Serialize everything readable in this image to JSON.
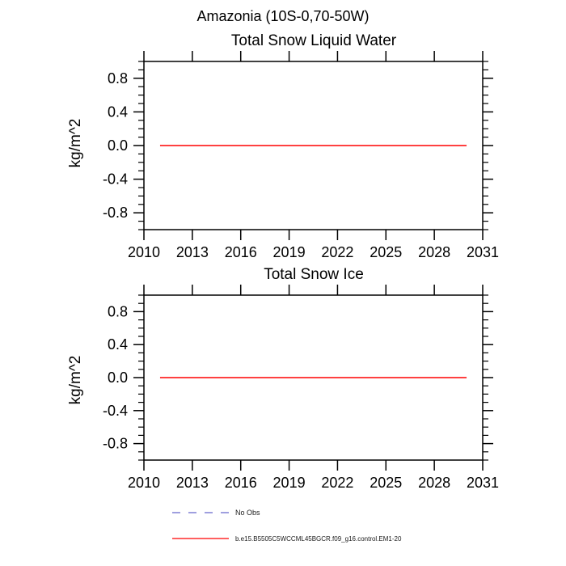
{
  "header": {
    "title": "Amazonia (10S-0,70-50W)"
  },
  "colors": {
    "background": "#ffffff",
    "axis": "#000000",
    "model_line": "#ff0000",
    "no_obs_line": "#6666cc"
  },
  "chart_data": [
    {
      "type": "line",
      "title": "Total Snow Liquid Water",
      "xlabel": "",
      "ylabel": "kg/m^2",
      "xlim": [
        2010,
        2031
      ],
      "ylim": [
        -1.0,
        1.0
      ],
      "xticks": [
        2010,
        2013,
        2016,
        2019,
        2022,
        2025,
        2028,
        2031
      ],
      "xtick_labels": [
        "2010",
        "2013",
        "2016",
        "2019",
        "2022",
        "2025",
        "2028",
        "2031"
      ],
      "yticks": [
        -0.8,
        -0.4,
        0.0,
        0.4,
        0.8
      ],
      "ytick_labels": [
        "-0.8",
        "-0.4",
        "0.0",
        "0.4",
        "0.8"
      ],
      "y_minor_step": 0.1,
      "grid": false,
      "series": [
        {
          "name": "b.e15.B5505C5WCCML45BGCR.f09_g16.control.EM1-20",
          "color": "#ff0000",
          "style": "solid",
          "x": [
            2011,
            2030
          ],
          "y": [
            0.0,
            0.0
          ]
        }
      ]
    },
    {
      "type": "line",
      "title": "Total Snow Ice",
      "xlabel": "",
      "ylabel": "kg/m^2",
      "xlim": [
        2010,
        2031
      ],
      "ylim": [
        -1.0,
        1.0
      ],
      "xticks": [
        2010,
        2013,
        2016,
        2019,
        2022,
        2025,
        2028,
        2031
      ],
      "xtick_labels": [
        "2010",
        "2013",
        "2016",
        "2019",
        "2022",
        "2025",
        "2028",
        "2031"
      ],
      "yticks": [
        -0.8,
        -0.4,
        0.0,
        0.4,
        0.8
      ],
      "ytick_labels": [
        "-0.8",
        "-0.4",
        "0.0",
        "0.4",
        "0.8"
      ],
      "y_minor_step": 0.1,
      "grid": false,
      "series": [
        {
          "name": "b.e15.B5505C5WCCML45BGCR.f09_g16.control.EM1-20",
          "color": "#ff0000",
          "style": "solid",
          "x": [
            2011,
            2030
          ],
          "y": [
            0.0,
            0.0
          ]
        }
      ]
    }
  ],
  "legend": {
    "position": "bottom",
    "items": [
      {
        "label": "No Obs",
        "color": "#6666cc",
        "style": "dashed"
      },
      {
        "label": "b.e15.B5505C5WCCML45BGCR.f09_g16.control.EM1-20",
        "color": "#ff0000",
        "style": "solid"
      }
    ]
  }
}
